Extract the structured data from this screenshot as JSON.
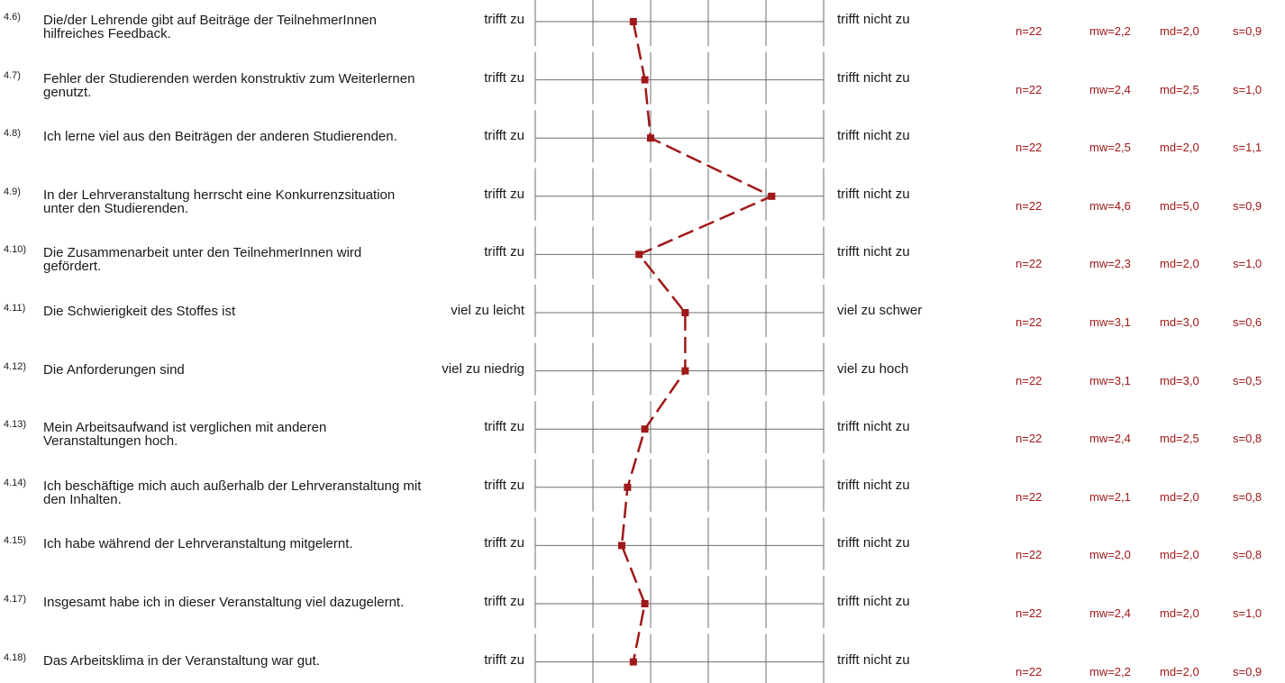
{
  "colors": {
    "profile_line": "#a01818",
    "grid": "#6e6e6e",
    "text": "#1a1a1a"
  },
  "chart_data": {
    "type": "line",
    "scale": [
      1,
      5
    ],
    "line_style": "dashed",
    "marker": "square",
    "items": [
      {
        "num": "4.6)",
        "text": "Die/der Lehrende gibt auf Beiträge der TeilnehmerInnen hilfreiches Feedback.",
        "left_pole": "trifft zu",
        "right_pole": "trifft nicht zu",
        "n": "n=22",
        "mw": "mw=2,2",
        "md": "md=2,0",
        "s": "s=0,9",
        "value": 2.2
      },
      {
        "num": "4.7)",
        "text": "Fehler der Studierenden werden konstruktiv zum Weiterlernen genutzt.",
        "left_pole": "trifft zu",
        "right_pole": "trifft nicht zu",
        "n": "n=22",
        "mw": "mw=2,4",
        "md": "md=2,5",
        "s": "s=1,0",
        "value": 2.4
      },
      {
        "num": "4.8)",
        "text": "Ich lerne viel aus den Beiträgen der anderen Studierenden.",
        "left_pole": "trifft zu",
        "right_pole": "trifft nicht zu",
        "n": "n=22",
        "mw": "mw=2,5",
        "md": "md=2,0",
        "s": "s=1,1",
        "value": 2.5
      },
      {
        "num": "4.9)",
        "text": "In der Lehrveranstaltung herrscht eine Konkurrenzsituation unter den Studierenden.",
        "left_pole": "trifft zu",
        "right_pole": "trifft nicht zu",
        "n": "n=22",
        "mw": "mw=4,6",
        "md": "md=5,0",
        "s": "s=0,9",
        "value": 4.6
      },
      {
        "num": "4.10)",
        "text": "Die Zusammenarbeit unter den TeilnehmerInnen wird gefördert.",
        "left_pole": "trifft zu",
        "right_pole": "trifft nicht zu",
        "n": "n=22",
        "mw": "mw=2,3",
        "md": "md=2,0",
        "s": "s=1,0",
        "value": 2.3
      },
      {
        "num": "4.11)",
        "text": "Die Schwierigkeit des Stoffes ist",
        "left_pole": "viel zu leicht",
        "right_pole": "viel zu schwer",
        "n": "n=22",
        "mw": "mw=3,1",
        "md": "md=3,0",
        "s": "s=0,6",
        "value": 3.1
      },
      {
        "num": "4.12)",
        "text": "Die Anforderungen sind",
        "left_pole": "viel zu niedrig",
        "right_pole": "viel zu hoch",
        "n": "n=22",
        "mw": "mw=3,1",
        "md": "md=3,0",
        "s": "s=0,5",
        "value": 3.1
      },
      {
        "num": "4.13)",
        "text": "Mein Arbeitsaufwand ist verglichen mit anderen Veranstaltungen hoch.",
        "left_pole": "trifft zu",
        "right_pole": "trifft nicht zu",
        "n": "n=22",
        "mw": "mw=2,4",
        "md": "md=2,5",
        "s": "s=0,8",
        "value": 2.4
      },
      {
        "num": "4.14)",
        "text": "Ich beschäftige mich auch außerhalb der Lehrveranstaltung mit den Inhalten.",
        "left_pole": "trifft zu",
        "right_pole": "trifft nicht zu",
        "n": "n=22",
        "mw": "mw=2,1",
        "md": "md=2,0",
        "s": "s=0,8",
        "value": 2.1
      },
      {
        "num": "4.15)",
        "text": "Ich habe während der Lehrveranstaltung mitgelernt.",
        "left_pole": "trifft zu",
        "right_pole": "trifft nicht zu",
        "n": "n=22",
        "mw": "mw=2,0",
        "md": "md=2,0",
        "s": "s=0,8",
        "value": 2.0
      },
      {
        "num": "4.17)",
        "text": "Insgesamt habe ich in dieser Veranstaltung viel dazugelernt.",
        "left_pole": "trifft zu",
        "right_pole": "trifft nicht zu",
        "n": "n=22",
        "mw": "mw=2,4",
        "md": "md=2,0",
        "s": "s=1,0",
        "value": 2.4
      },
      {
        "num": "4.18)",
        "text": "Das Arbeitsklima in der Veranstaltung war gut.",
        "left_pole": "trifft zu",
        "right_pole": "trifft nicht zu",
        "n": "n=22",
        "mw": "mw=2,2",
        "md": "md=2,0",
        "s": "s=0,9",
        "value": 2.2
      }
    ]
  }
}
